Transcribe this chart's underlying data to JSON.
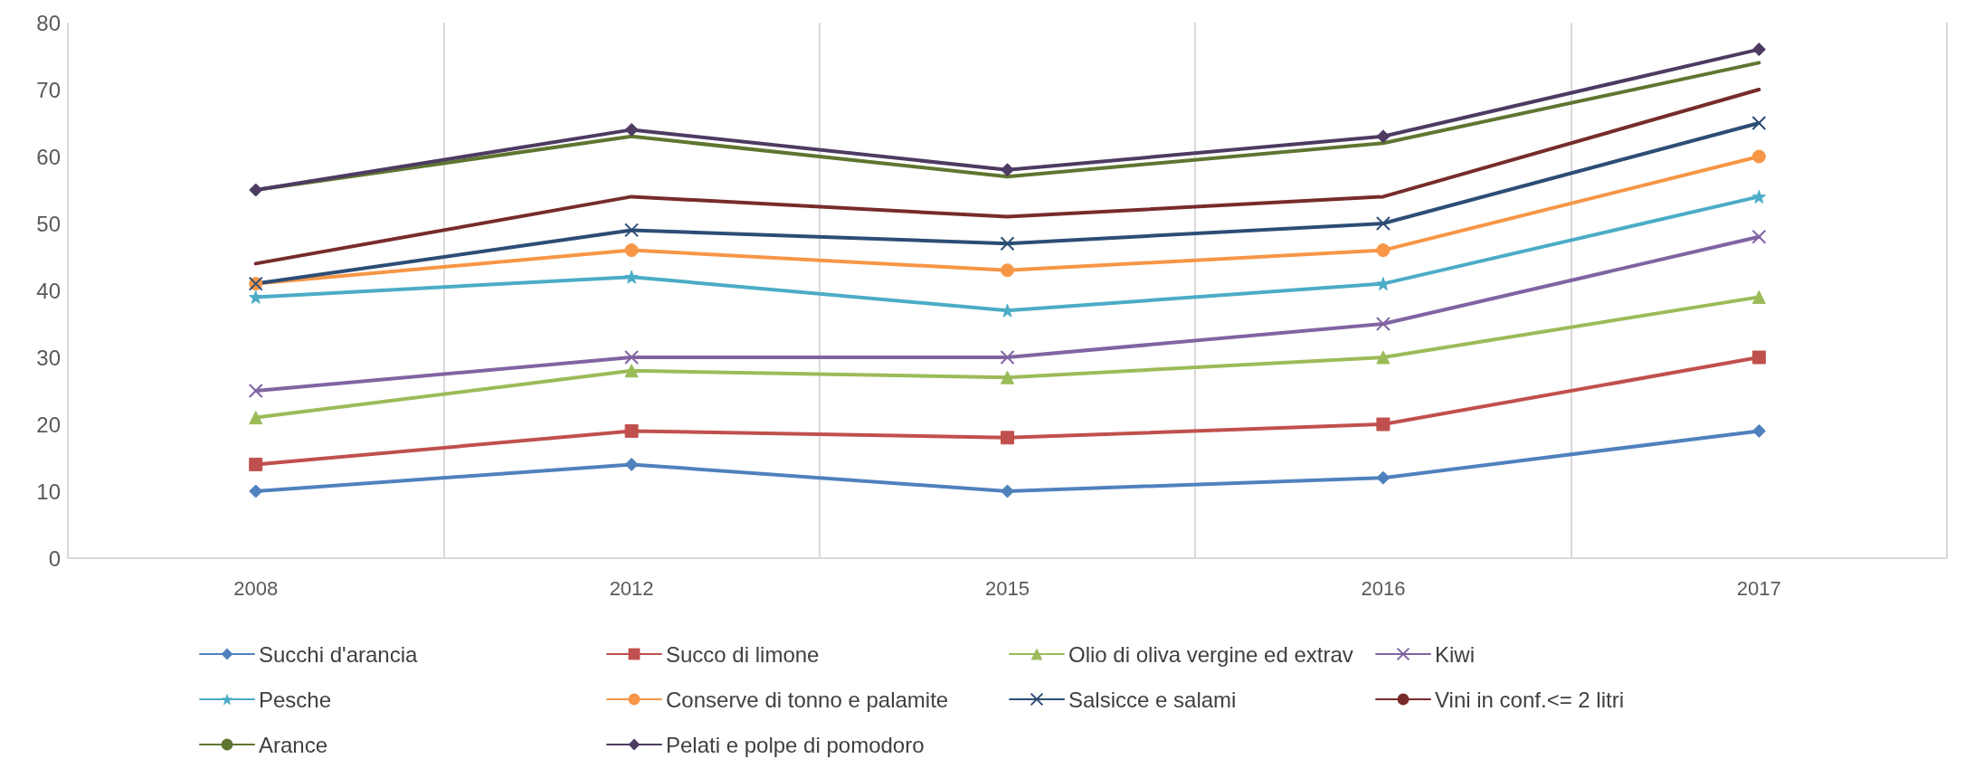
{
  "chart_data": {
    "type": "line",
    "categories": [
      "2008",
      "2012",
      "2015",
      "2016",
      "2017"
    ],
    "series": [
      {
        "name": "Succhi d'arancia",
        "color": "#4f81bd",
        "marker": "diamond",
        "values": [
          10,
          14,
          10,
          12,
          19
        ]
      },
      {
        "name": "Succo di limone",
        "color": "#c0504d",
        "marker": "square",
        "values": [
          14,
          19,
          18,
          20,
          30
        ]
      },
      {
        "name": "Olio di oliva vergine ed extrav",
        "color": "#9bbb59",
        "marker": "triangle",
        "values": [
          21,
          28,
          27,
          30,
          39
        ]
      },
      {
        "name": "Kiwi",
        "color": "#8064a2",
        "marker": "cross",
        "values": [
          25,
          30,
          30,
          35,
          48
        ]
      },
      {
        "name": "Pesche",
        "color": "#4bacc6",
        "marker": "star",
        "values": [
          39,
          42,
          37,
          41,
          54
        ]
      },
      {
        "name": "Conserve di tonno e palamite",
        "color": "#f79646",
        "marker": "circle",
        "values": [
          41,
          46,
          43,
          46,
          60
        ]
      },
      {
        "name": "Salsicce e salami",
        "color": "#2c4d75",
        "marker": "cross",
        "values": [
          41,
          49,
          47,
          50,
          65
        ]
      },
      {
        "name": "Vini in conf.<= 2 litri",
        "color": "#772c2a",
        "marker": "none",
        "values": [
          44,
          54,
          51,
          54,
          70
        ]
      },
      {
        "name": "Arance",
        "color": "#5f7530",
        "marker": "none",
        "values": [
          55,
          63,
          57,
          62,
          74
        ]
      },
      {
        "name": "Pelati e polpe di pomodoro",
        "color": "#4d3b62",
        "marker": "diamond",
        "values": [
          55,
          64,
          58,
          63,
          76
        ]
      }
    ],
    "ylim": [
      0,
      80
    ],
    "yticks": [
      0,
      10,
      20,
      30,
      40,
      50,
      60,
      70,
      80
    ],
    "grid": "x",
    "legend": "bottom",
    "line_style": "solid"
  }
}
